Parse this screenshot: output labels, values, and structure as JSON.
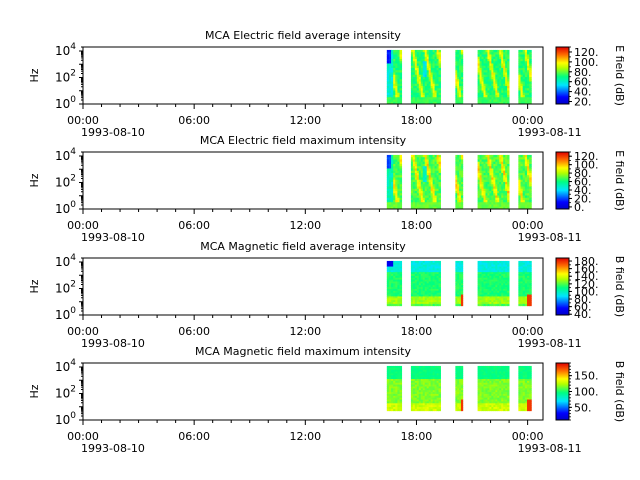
{
  "figure": {
    "panels": [
      {
        "title": "MCA  Electric field average intensity",
        "ylabel": "Hz",
        "cbar_label": "E field (dB)",
        "cbar_ticks": [
          "120.",
          "100.",
          "80.",
          "60.",
          "40.",
          "20."
        ],
        "cbar_values": [
          120,
          100,
          80,
          60,
          40,
          20
        ],
        "cbar_range": [
          15,
          130
        ],
        "style": "avg_e"
      },
      {
        "title": "MCA  Electric field maximum intensity",
        "ylabel": "Hz",
        "cbar_label": "E field (dB)",
        "cbar_ticks": [
          "120.",
          "100.",
          "80.",
          "60.",
          "40.",
          "20.",
          "0."
        ],
        "cbar_values": [
          120,
          100,
          80,
          60,
          40,
          20,
          0
        ],
        "cbar_range": [
          -5,
          130
        ],
        "style": "max_e"
      },
      {
        "title": "MCA  Magnetic field average intensity",
        "ylabel": "Hz",
        "cbar_label": "B field (dB)",
        "cbar_ticks": [
          "180.",
          "160.",
          "140.",
          "120.",
          "100.",
          "80.",
          "60.",
          "40."
        ],
        "cbar_values": [
          180,
          160,
          140,
          120,
          100,
          80,
          60,
          40
        ],
        "cbar_range": [
          38,
          188
        ],
        "style": "avg_b"
      },
      {
        "title": "MCA  Magnetic field maximum intensity",
        "ylabel": "Hz",
        "cbar_label": "B field (dB)",
        "cbar_ticks": [
          "150.",
          "100.",
          "50."
        ],
        "cbar_values": [
          150,
          100,
          50
        ],
        "cbar_range": [
          10,
          190
        ],
        "style": "max_b"
      }
    ],
    "x_ticks": [
      "00:00",
      "06:00",
      "12:00",
      "18:00",
      "00:00"
    ],
    "x_tick_hours": [
      0,
      6,
      12,
      18,
      24
    ],
    "date_labels": [
      "1993-08-10",
      "1993-08-11"
    ],
    "y_ticks": [
      {
        "base": "10",
        "exp": "0"
      },
      {
        "base": "10",
        "exp": "2"
      },
      {
        "base": "10",
        "exp": "4"
      }
    ],
    "y_tick_exponents": [
      0,
      2,
      4
    ]
  },
  "chart_data": [
    {
      "type": "heatmap",
      "title": "MCA  Electric field average intensity",
      "xlabel": "",
      "ylabel": "Hz",
      "colorbar_label": "E field (dB)",
      "x_range": [
        "1993-08-10 00:00",
        "1993-08-11 00:50"
      ],
      "y_scale": "log",
      "y_range_hz": [
        1,
        20000
      ],
      "data_intervals_hours": [
        [
          16.4,
          17.2
        ],
        [
          17.7,
          19.3
        ],
        [
          20.1,
          20.5
        ],
        [
          21.3,
          23.0
        ],
        [
          23.5,
          24.2
        ]
      ],
      "data_freq_range_hz": [
        1,
        12000
      ],
      "colorbar_range": [
        15,
        130
      ]
    },
    {
      "type": "heatmap",
      "title": "MCA  Electric field maximum intensity",
      "xlabel": "",
      "ylabel": "Hz",
      "colorbar_label": "E field (dB)",
      "x_range": [
        "1993-08-10 00:00",
        "1993-08-11 00:50"
      ],
      "y_scale": "log",
      "y_range_hz": [
        1,
        20000
      ],
      "data_intervals_hours": [
        [
          16.4,
          17.2
        ],
        [
          17.7,
          19.3
        ],
        [
          20.1,
          20.5
        ],
        [
          21.3,
          23.0
        ],
        [
          23.5,
          24.2
        ]
      ],
      "data_freq_range_hz": [
        1,
        12000
      ],
      "colorbar_range": [
        -5,
        130
      ]
    },
    {
      "type": "heatmap",
      "title": "MCA  Magnetic field average intensity",
      "xlabel": "",
      "ylabel": "Hz",
      "colorbar_label": "B field (dB)",
      "x_range": [
        "1993-08-10 00:00",
        "1993-08-11 00:50"
      ],
      "y_scale": "log",
      "y_range_hz": [
        1,
        20000
      ],
      "data_intervals_hours": [
        [
          16.4,
          17.2
        ],
        [
          17.7,
          19.3
        ],
        [
          20.1,
          20.5
        ],
        [
          21.3,
          23.0
        ],
        [
          23.5,
          24.2
        ]
      ],
      "data_freq_range_hz": [
        5,
        12000
      ],
      "colorbar_range": [
        38,
        188
      ]
    },
    {
      "type": "heatmap",
      "title": "MCA  Magnetic field maximum intensity",
      "xlabel": "",
      "ylabel": "Hz",
      "colorbar_label": "B field (dB)",
      "x_range": [
        "1993-08-10 00:00",
        "1993-08-11 00:50"
      ],
      "y_scale": "log",
      "y_range_hz": [
        1,
        20000
      ],
      "data_intervals_hours": [
        [
          16.4,
          17.2
        ],
        [
          17.7,
          19.3
        ],
        [
          20.1,
          20.5
        ],
        [
          21.3,
          23.0
        ],
        [
          23.5,
          24.2
        ]
      ],
      "data_freq_range_hz": [
        5,
        12000
      ],
      "colorbar_range": [
        10,
        190
      ]
    }
  ]
}
